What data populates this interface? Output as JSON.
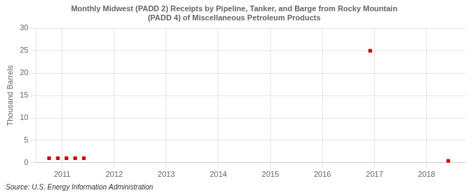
{
  "chart_data": {
    "type": "scatter",
    "title": [
      "Monthly Midwest (PADD 2) Receipts by Pipeline, Tanker, and Barge from Rocky Mountain",
      "(PADD 4) of Miscellaneous Petroleum Products"
    ],
    "ylabel": "Thousand Barrels",
    "annotations": [
      "Source: U.S. Energy Information Administration"
    ],
    "x": [
      2010.75,
      2010.917,
      2011.083,
      2011.25,
      2011.417,
      2016.917,
      2018.417
    ],
    "values": [
      1,
      1,
      1,
      1,
      1,
      25,
      0.4
    ],
    "color": "#cc0000",
    "marker": "square",
    "xlim": [
      2010.5,
      2018.75
    ],
    "xticks": [
      2011,
      2012,
      2013,
      2014,
      2015,
      2016,
      2017,
      2018
    ],
    "ylim": [
      0,
      30
    ],
    "yticks": [
      0,
      5,
      10,
      15,
      20,
      25,
      30
    ],
    "grid": true
  }
}
